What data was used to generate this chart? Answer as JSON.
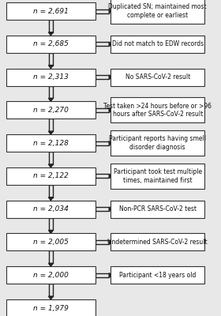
{
  "left_boxes": [
    "n = 2,691",
    "n = 2,685",
    "n = 2,313",
    "n = 2,270",
    "n = 2,128",
    "n = 2,122",
    "n = 2,034",
    "n = 2,005",
    "n = 2,000",
    "n = 1,979"
  ],
  "right_boxes": [
    "Duplicated SN; maintained most\ncomplete or earliest",
    "Did not match to EDW records",
    "No SARS-CoV-2 result",
    "Test taken >24 hours before or >96\nhours after SARS-CoV-2 result",
    "Participant reports having smell\ndisorder diagnosis",
    "Participant took test multiple\ntimes, maintained first",
    "Non-PCR SARS-CoV-2 test",
    "Undetermined SARS-CoV-2 result",
    "Participant <18 years old"
  ],
  "bg_color": "#e8e8e8",
  "box_color": "#ffffff",
  "box_edge_color": "#333333",
  "arrow_color": "#222222",
  "text_color": "#111111"
}
